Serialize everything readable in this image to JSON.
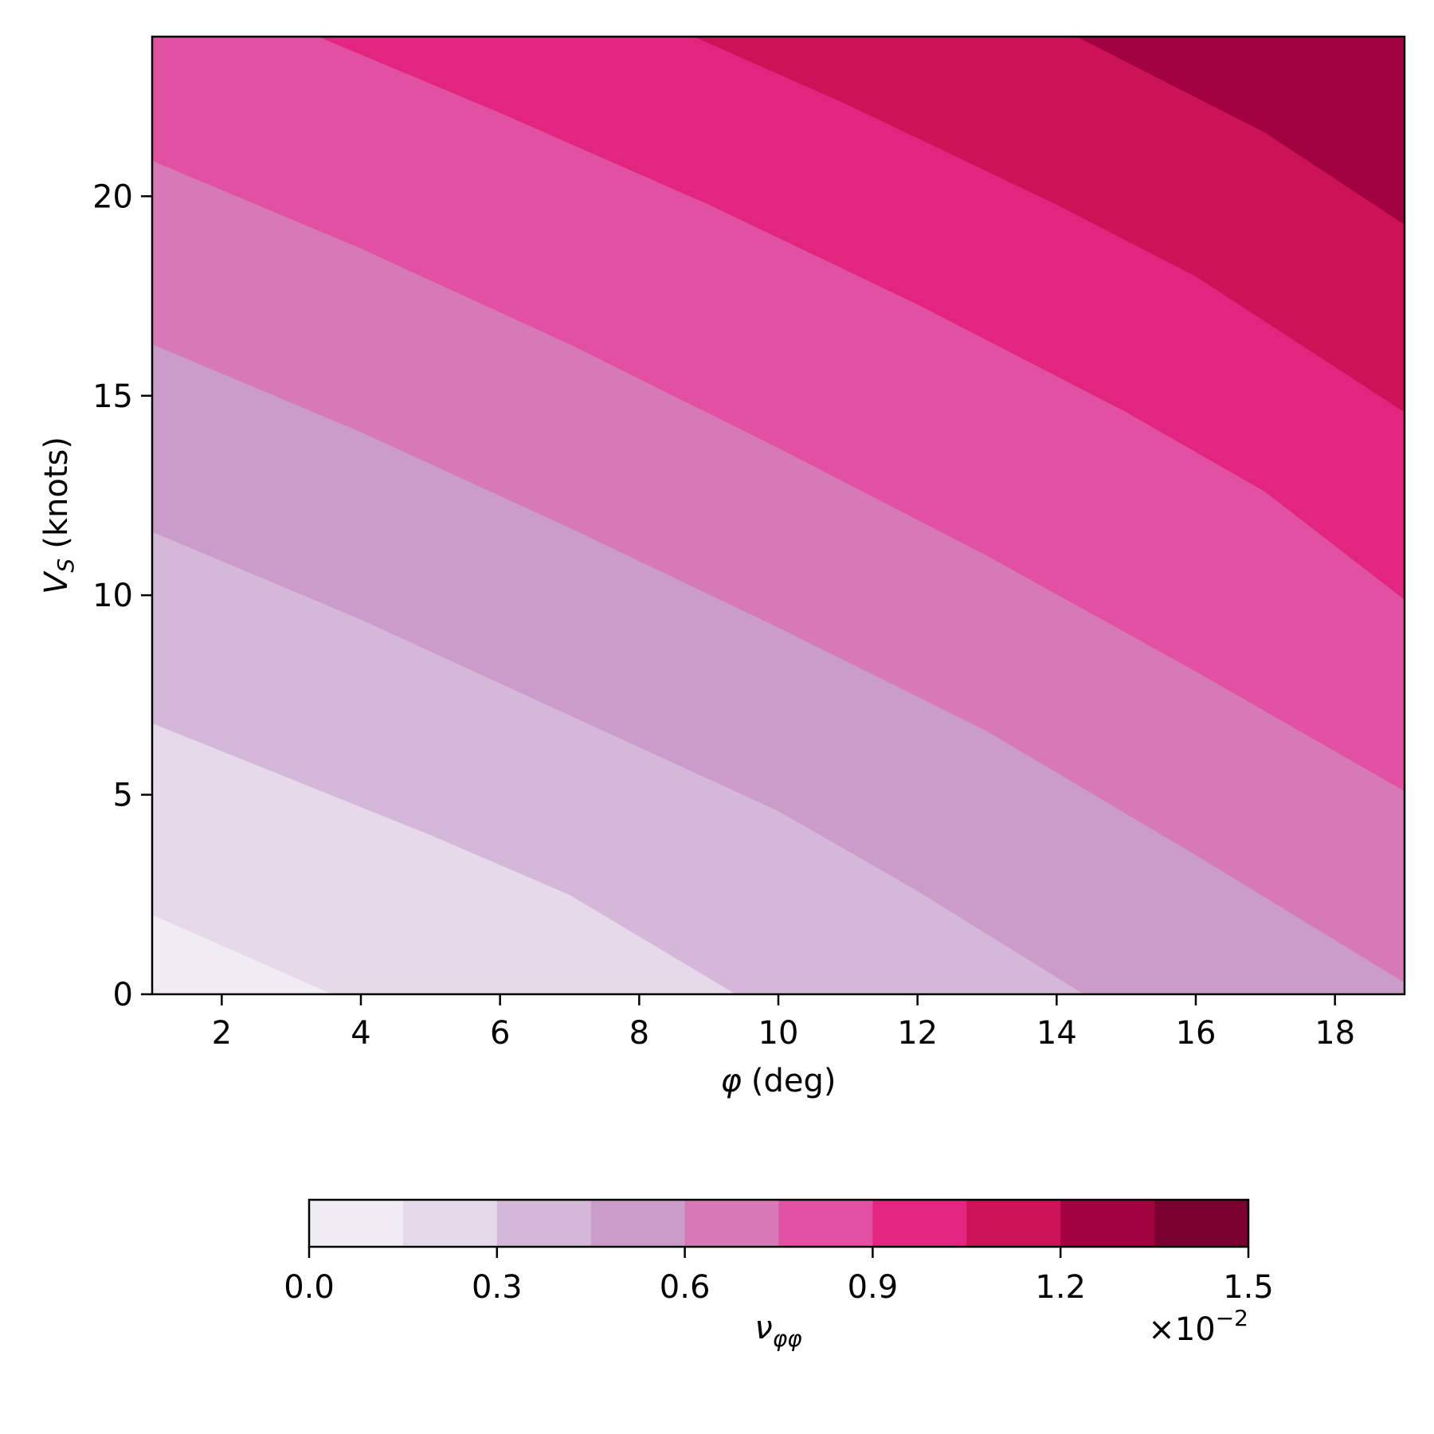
{
  "chart_data": {
    "type": "contourf",
    "x": {
      "label": "(deg)",
      "label_symbol": "φ",
      "range": [
        1,
        19
      ],
      "ticks": [
        2,
        4,
        6,
        8,
        10,
        12,
        14,
        16,
        18
      ]
    },
    "y": {
      "label": "(knots)",
      "label_symbol": "V",
      "label_subscript": "S",
      "range": [
        0,
        24
      ],
      "ticks": [
        0,
        5,
        10,
        15,
        20
      ]
    },
    "levels": [
      0.0,
      0.15,
      0.3,
      0.45,
      0.6,
      0.75,
      0.9,
      1.05,
      1.2,
      1.35,
      1.5
    ],
    "level_colors": [
      "#f0ecf4",
      "#e5d9ea",
      "#d5b8d9",
      "#cb9bc9",
      "#d778b7",
      "#e251a1",
      "#e2257f",
      "#cd1357",
      "#a30241",
      "#7a0030"
    ],
    "contour_lines": [
      {
        "level": 0.15,
        "points": [
          [
            1,
            2.0
          ],
          [
            3.6,
            0
          ]
        ]
      },
      {
        "level": 0.3,
        "points": [
          [
            1,
            6.8
          ],
          [
            3,
            5.4
          ],
          [
            5,
            4.0
          ],
          [
            7,
            2.5
          ],
          [
            9.4,
            0
          ]
        ]
      },
      {
        "level": 0.45,
        "points": [
          [
            1,
            11.6
          ],
          [
            4,
            9.4
          ],
          [
            7,
            7.0
          ],
          [
            10,
            4.6
          ],
          [
            12,
            2.6
          ],
          [
            14.4,
            0
          ]
        ]
      },
      {
        "level": 0.6,
        "points": [
          [
            1,
            16.3
          ],
          [
            4,
            14.1
          ],
          [
            7,
            11.7
          ],
          [
            10,
            9.2
          ],
          [
            13,
            6.6
          ],
          [
            16,
            3.5
          ],
          [
            19,
            0.3
          ]
        ]
      },
      {
        "level": 0.75,
        "points": [
          [
            1,
            20.9
          ],
          [
            4,
            18.7
          ],
          [
            7,
            16.3
          ],
          [
            10,
            13.7
          ],
          [
            13,
            11.0
          ],
          [
            16,
            8.1
          ],
          [
            19,
            5.1
          ]
        ]
      },
      {
        "level": 0.9,
        "points": [
          [
            3.4,
            24
          ],
          [
            6,
            22.1
          ],
          [
            9,
            19.8
          ],
          [
            12,
            17.3
          ],
          [
            15,
            14.6
          ],
          [
            17,
            12.6
          ],
          [
            19,
            9.9
          ]
        ]
      },
      {
        "level": 1.05,
        "points": [
          [
            8.8,
            24
          ],
          [
            11,
            22.3
          ],
          [
            14,
            19.8
          ],
          [
            16,
            18.0
          ],
          [
            19,
            14.6
          ]
        ]
      },
      {
        "level": 1.2,
        "points": [
          [
            14.3,
            24
          ],
          [
            17,
            21.6
          ],
          [
            19,
            19.3
          ]
        ]
      }
    ],
    "colorbar": {
      "label": "ν",
      "label_subscript": "φφ",
      "ticks": [
        0.0,
        0.3,
        0.6,
        0.9,
        1.2,
        1.5
      ],
      "tick_labels": [
        "0.0",
        "0.3",
        "0.6",
        "0.9",
        "1.2",
        "1.5"
      ],
      "offset_text_base": "×10",
      "offset_text_exponent": "−2"
    }
  }
}
